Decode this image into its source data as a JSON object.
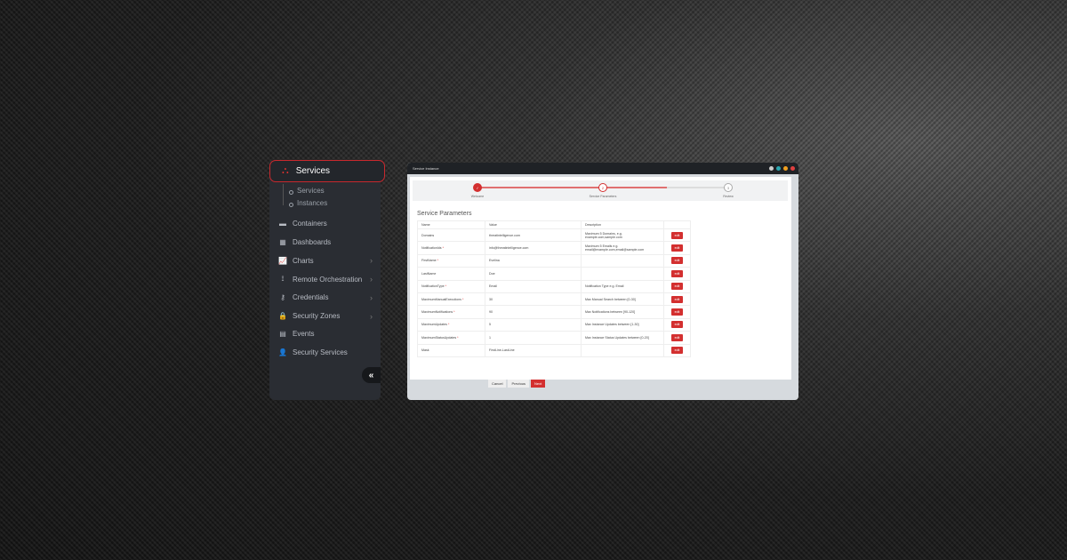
{
  "sidebar": {
    "header": "Services",
    "sub_items": [
      "Services",
      "Instances"
    ],
    "items": [
      {
        "label": "Containers",
        "icon": "folder-icon"
      },
      {
        "label": "Dashboards",
        "icon": "grid-icon"
      },
      {
        "label": "Charts",
        "icon": "chart-icon",
        "chevron": true
      },
      {
        "label": "Remote Orchestration",
        "icon": "antenna-icon",
        "chevron": true
      },
      {
        "label": "Credentials",
        "icon": "key-icon",
        "chevron": true
      },
      {
        "label": "Security Zones",
        "icon": "lock-icon",
        "chevron": true
      },
      {
        "label": "Events",
        "icon": "calendar-icon"
      },
      {
        "label": "Security Services",
        "icon": "user-shield-icon"
      }
    ]
  },
  "window": {
    "title": "Service Instance",
    "dot_colors": [
      "#cccccc",
      "#2aa6b0",
      "#f0a020",
      "#e04040"
    ]
  },
  "stepper": {
    "steps": [
      "Welcome",
      "Service Parameters",
      "Review"
    ],
    "numbers": [
      "✓",
      "2",
      "3"
    ],
    "progress_percent": 75
  },
  "section_title": "Service Parameters",
  "table": {
    "headers": [
      "Name",
      "Value",
      "Description",
      ""
    ],
    "rows": [
      {
        "name": "Domains",
        "req": false,
        "value": "threatintelligence.com",
        "desc": "Maximum 5 Domains, e.g. example.com,sample.com"
      },
      {
        "name": "NotificationIds",
        "req": true,
        "value": "info@threatintelligence.com",
        "desc": "Maximum 5 Emails e.g. email@example.com,email@sample.com"
      },
      {
        "name": "FirstName",
        "req": true,
        "value": "Evelina",
        "desc": ""
      },
      {
        "name": "LastName",
        "req": false,
        "value": "Doe",
        "desc": ""
      },
      {
        "name": "NotificationType",
        "req": true,
        "value": "Email",
        "desc": "Notification Type e.g. Email"
      },
      {
        "name": "MaximumManualExecutions",
        "req": true,
        "value": "30",
        "desc": "Max Manual Search between [0-30]"
      },
      {
        "name": "MaximumNotifications",
        "req": true,
        "value": "90",
        "desc": "Max Notifications between [90-120]"
      },
      {
        "name": "MaximumUpdates",
        "req": true,
        "value": "5",
        "desc": "Max Instance Updates between [1-30]"
      },
      {
        "name": "MaximumStatusUpdates",
        "req": true,
        "value": "1",
        "desc": "Max Instance Status Updates between [0-20]"
      },
      {
        "name": "Mask",
        "req": false,
        "value": "FirstLine-LastLine",
        "desc": ""
      }
    ],
    "edit_label": "edit"
  },
  "buttons": {
    "cancel": "Cancel",
    "previous": "Previous",
    "next": "Next"
  },
  "colors": {
    "accent": "#d32f2f"
  }
}
